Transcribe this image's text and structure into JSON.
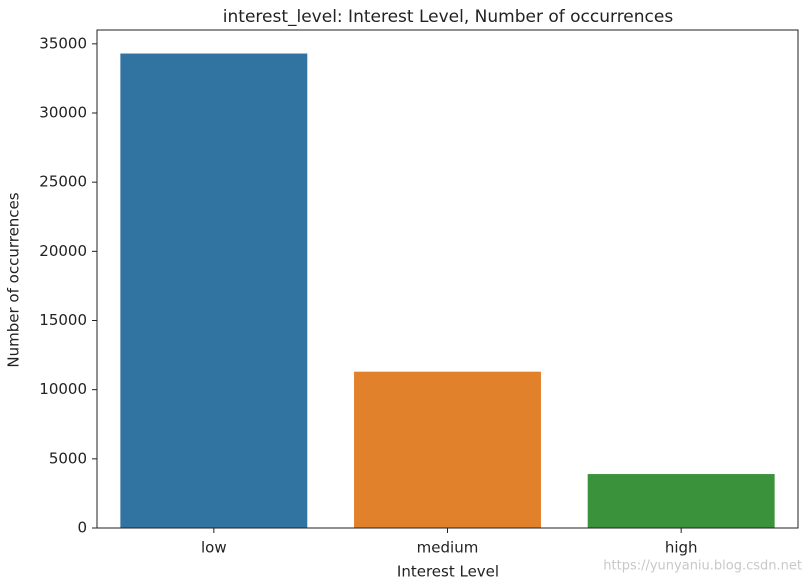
{
  "chart_data": {
    "type": "bar",
    "title": "interest_level: Interest Level, Number of occurrences",
    "x_label": "Interest Level",
    "y_label": "Number of occurrences",
    "categories": [
      "low",
      "medium",
      "high"
    ],
    "values": [
      34300,
      11300,
      3900
    ],
    "colors": [
      "#3274a1",
      "#e1812c",
      "#3a923a"
    ],
    "ylim": [
      0,
      36000
    ],
    "yticks": [
      0,
      5000,
      10000,
      15000,
      20000,
      25000,
      30000,
      35000
    ],
    "grid": false,
    "watermark": "https://yunyaniu.blog.csdn.net"
  }
}
